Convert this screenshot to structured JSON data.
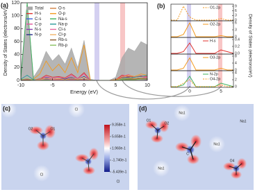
{
  "chart_data": [
    {
      "type": "line",
      "panel_label": "(a)",
      "x_label": "Energy (eV)",
      "y_label": "Density of States (electrons/eV)",
      "x": [
        -10,
        -9,
        -8,
        -7,
        -6,
        -5,
        -4,
        -3,
        -2,
        -1,
        0,
        1,
        2,
        3,
        4,
        5,
        6,
        7,
        8,
        9,
        10
      ],
      "xlim": [
        -10,
        10
      ],
      "xticks": [
        -10,
        -5,
        0,
        5,
        10
      ],
      "ylim": [
        0,
        120
      ],
      "yticks": [
        0,
        20,
        40,
        60,
        80,
        100,
        120
      ],
      "series": [
        {
          "name": "Total",
          "color": "#a8a8a8",
          "area": true,
          "values": [
            10,
            120,
            5,
            20,
            45,
            30,
            40,
            25,
            50,
            20,
            62,
            2,
            0,
            0,
            0,
            5,
            35,
            50,
            45,
            60,
            55
          ]
        },
        {
          "name": "H-s",
          "color": "#e0302c",
          "values": [
            0,
            0,
            0,
            2,
            8,
            5,
            6,
            4,
            10,
            3,
            12,
            0,
            0,
            0,
            0,
            1,
            8,
            6,
            5,
            7,
            6
          ]
        },
        {
          "name": "C-s",
          "color": "#3a5fd8",
          "values": [
            0,
            0,
            0,
            1,
            3,
            2,
            2,
            1,
            3,
            1,
            2,
            0,
            0,
            0,
            0,
            0,
            3,
            4,
            3,
            2,
            2
          ]
        },
        {
          "name": "C-p",
          "color": "#e0509a",
          "values": [
            0,
            0,
            0,
            2,
            6,
            3,
            5,
            2,
            8,
            3,
            10,
            0,
            0,
            0,
            0,
            1,
            6,
            9,
            5,
            6,
            4
          ]
        },
        {
          "name": "N-s",
          "color": "#8a3fb0",
          "values": [
            0,
            0,
            0,
            1,
            2,
            1,
            1,
            1,
            2,
            1,
            2,
            0,
            0,
            0,
            0,
            0,
            2,
            2,
            2,
            2,
            1
          ]
        },
        {
          "name": "N-p",
          "color": "#2a2f8a",
          "values": [
            0,
            0,
            0,
            1,
            4,
            2,
            3,
            2,
            5,
            2,
            6,
            0,
            0,
            0,
            0,
            0,
            4,
            5,
            3,
            4,
            3
          ]
        },
        {
          "name": "O-s",
          "color": "#d08040",
          "values": [
            2,
            0,
            0,
            3,
            3,
            2,
            2,
            1,
            2,
            1,
            2,
            0,
            0,
            0,
            0,
            0,
            2,
            3,
            2,
            2,
            2
          ]
        },
        {
          "name": "O-p",
          "color": "#f39a1e",
          "values": [
            0,
            0,
            2,
            10,
            30,
            15,
            25,
            12,
            35,
            12,
            55,
            0,
            0,
            0,
            0,
            1,
            5,
            8,
            6,
            10,
            8
          ]
        },
        {
          "name": "Na-s",
          "color": "#3cb05a",
          "values": [
            3,
            120,
            1,
            0,
            0,
            0,
            0,
            0,
            0,
            0,
            0,
            0,
            0,
            0,
            0,
            0,
            2,
            3,
            2,
            3,
            2
          ]
        },
        {
          "name": "Na-p",
          "color": "#2a9a9a",
          "values": [
            2,
            8,
            1,
            0,
            0,
            0,
            0,
            0,
            1,
            0,
            1,
            0,
            0,
            0,
            0,
            0,
            3,
            4,
            5,
            6,
            8
          ]
        },
        {
          "name": "Cl-s",
          "color": "#e86aa0",
          "values": [
            1,
            2,
            0,
            1,
            1,
            1,
            1,
            0,
            1,
            0,
            1,
            0,
            0,
            0,
            0,
            0,
            1,
            2,
            1,
            2,
            2
          ]
        },
        {
          "name": "Cl-p",
          "color": "#f2b46a",
          "values": [
            0,
            0,
            0,
            1,
            3,
            2,
            3,
            1,
            4,
            2,
            5,
            0,
            0,
            0,
            0,
            0,
            3,
            4,
            3,
            4,
            3
          ]
        },
        {
          "name": "Rb-s",
          "color": "#8a5a2a",
          "values": [
            0,
            1,
            0,
            0,
            0,
            0,
            0,
            0,
            0,
            0,
            0,
            0,
            0,
            0,
            0,
            0,
            1,
            2,
            2,
            3,
            3
          ]
        },
        {
          "name": "Rb-p",
          "color": "#88c060",
          "values": [
            1,
            3,
            0,
            0,
            1,
            0,
            0,
            0,
            0,
            0,
            0,
            0,
            0,
            0,
            0,
            0,
            1,
            1,
            1,
            2,
            2
          ]
        }
      ]
    },
    {
      "type": "line",
      "panel_label": "(b)",
      "y_label": "Density of States (electrons/eV)",
      "x": [
        -3,
        -2,
        -1,
        0,
        1,
        2,
        3,
        4,
        5,
        6,
        7
      ],
      "xlim": [
        -3,
        7
      ],
      "xticks": [
        0,
        5
      ],
      "panels": [
        {
          "ylim": [
            0,
            9
          ],
          "yticks": [
            0,
            3,
            6,
            9
          ],
          "series": [
            {
              "name": "O1-2p",
              "color": "#f39a1e",
              "dash": true,
              "values": [
                0,
                0,
                9,
                2,
                0,
                0,
                0,
                0,
                1,
                0,
                0
              ]
            }
          ]
        },
        {
          "ylim": [
            0,
            6
          ],
          "yticks": [
            0,
            3,
            6
          ],
          "series": [
            {
              "name": "O2-2p",
              "color": "#f39a1e",
              "values": [
                0,
                0,
                1,
                6,
                0,
                0,
                0,
                0,
                0.5,
                0,
                0
              ]
            }
          ]
        },
        {
          "ylim": [
            0,
            0.4
          ],
          "yticks": [
            {
              "value": 0,
              "label": "0.0"
            },
            0.2,
            0.4
          ],
          "series": [
            {
              "name": "H-s",
              "color": "#e0302c",
              "values": [
                0,
                0,
                0.05,
                0.3,
                0,
                0,
                0,
                0,
                0.1,
                0.05,
                0
              ]
            }
          ]
        },
        {
          "ylim": [
            0,
            8
          ],
          "yticks": [
            0,
            4,
            8
          ],
          "series": [
            {
              "name": "O3-2p",
              "color": "#f39a1e",
              "values": [
                0,
                0,
                1,
                7,
                0,
                0,
                0,
                0,
                1,
                0,
                0
              ]
            }
          ]
        },
        {
          "ylim": [
            0,
            4
          ],
          "yticks": [
            0,
            2,
            4
          ],
          "series": [
            {
              "name": "N-2p",
              "color": "#3cb05a",
              "values": [
                0,
                0,
                0.5,
                3,
                0,
                0,
                0,
                0,
                1,
                0.5,
                0
              ]
            },
            {
              "name": "O4-2p",
              "color": "#f39a1e",
              "dash": true,
              "values": [
                0,
                0,
                1,
                2,
                0,
                0,
                0,
                0,
                0.5,
                0,
                0
              ]
            }
          ]
        }
      ]
    }
  ],
  "maps": {
    "c": {
      "label": "(c)",
      "atoms": [
        "Cl",
        "Cl",
        "O2",
        "O1",
        "Cl",
        "Cl"
      ]
    },
    "d": {
      "label": "(d)",
      "atoms": [
        "O1",
        "Na1",
        "O2",
        "Na1",
        "C",
        "Na1",
        "Na1",
        "O4"
      ]
    },
    "colorbar": {
      "clim": [
        -0.5439,
        0.9358
      ],
      "ticks": [
        {
          "value": 0.9358,
          "label": "9.358e-1"
        },
        {
          "value": 0.5658,
          "label": "5.658e-1"
        },
        {
          "value": 0.196,
          "label": "1.960e-1"
        },
        {
          "value": -0.174,
          "label": "-1.740e-1"
        },
        {
          "value": -0.5439,
          "label": "-5.439e-1"
        }
      ]
    }
  }
}
